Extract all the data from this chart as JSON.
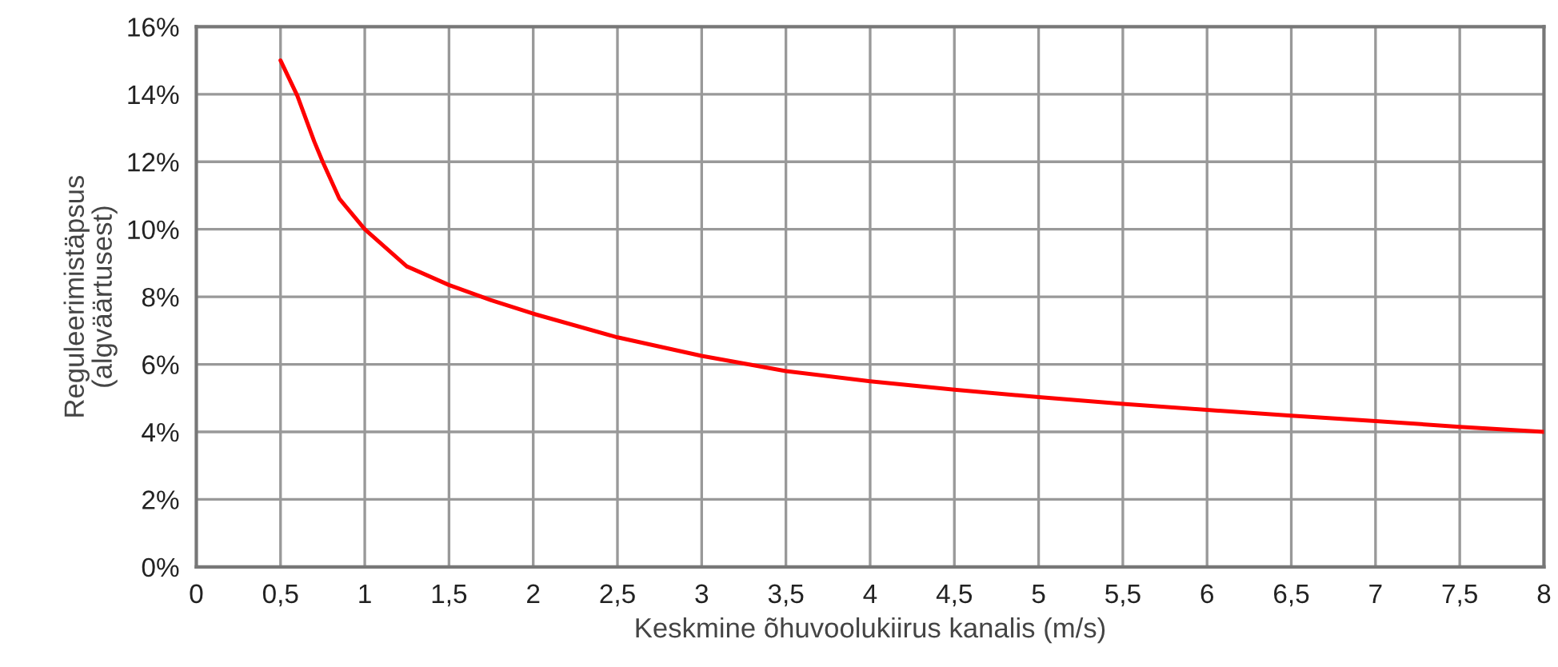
{
  "chart_data": {
    "type": "line",
    "xlabel": "Keskmine õhuvoolukiirus kanalis (m/s)",
    "ylabel": "Reguleerimistäpsus\n(algväärtusest)",
    "x": [
      0.5,
      0.6,
      0.7,
      0.75,
      0.85,
      1,
      1.25,
      1.5,
      1.75,
      2,
      2.5,
      3,
      3.5,
      4,
      4.5,
      5,
      5.5,
      6,
      6.5,
      7,
      7.5,
      8
    ],
    "series": [
      {
        "color": "#ff0000",
        "values": [
          15,
          13.95,
          12.6,
          12,
          10.9,
          10,
          8.9,
          8.35,
          7.9,
          7.5,
          6.8,
          6.25,
          5.8,
          5.5,
          5.25,
          5.03,
          4.83,
          4.65,
          4.48,
          4.32,
          4.15,
          4.0
        ]
      }
    ],
    "xlim": [
      0,
      8
    ],
    "xticks": [
      0,
      {
        "value": 0.5,
        "label": "0,5"
      },
      1,
      {
        "value": 1.5,
        "label": "1,5"
      },
      2,
      {
        "value": 2.5,
        "label": "2,5"
      },
      3,
      {
        "value": 3.5,
        "label": "3,5"
      },
      4,
      {
        "value": 4.5,
        "label": "4,5"
      },
      5,
      {
        "value": 5.5,
        "label": "5,5"
      },
      6,
      {
        "value": 6.5,
        "label": "6,5"
      },
      7,
      {
        "value": 7.5,
        "label": "7,5"
      },
      8
    ],
    "ylim": [
      0,
      16
    ],
    "yticks": [
      {
        "value": 0,
        "label": "0%"
      },
      {
        "value": 2,
        "label": "2%"
      },
      {
        "value": 4,
        "label": "4%"
      },
      {
        "value": 6,
        "label": "6%"
      },
      {
        "value": 8,
        "label": "8%"
      },
      {
        "value": 10,
        "label": "10%"
      },
      {
        "value": 12,
        "label": "12%"
      },
      {
        "value": 14,
        "label": "14%"
      },
      {
        "value": 16,
        "label": "16%"
      }
    ],
    "grid": true,
    "marker": "none",
    "line_style": "solid"
  }
}
